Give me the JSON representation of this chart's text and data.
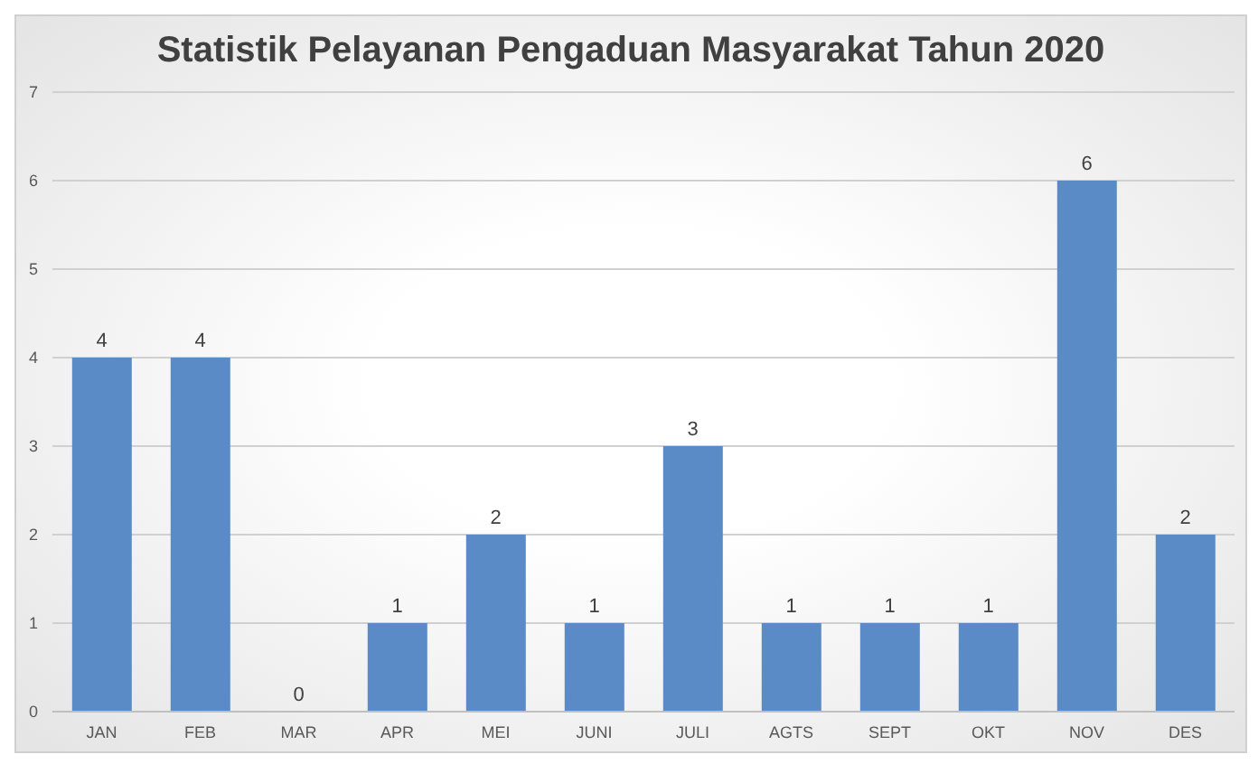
{
  "chart_data": {
    "type": "bar",
    "title": "Statistik Pelayanan Pengaduan Masyarakat Tahun 2020",
    "categories": [
      "JAN",
      "FEB",
      "MAR",
      "APR",
      "MEI",
      "JUNI",
      "JULI",
      "AGTS",
      "SEPT",
      "OKT",
      "NOV",
      "DES"
    ],
    "values": [
      4,
      4,
      0,
      1,
      2,
      1,
      3,
      1,
      1,
      1,
      6,
      2
    ],
    "color": "#5b8bc7",
    "ylim": [
      0,
      7
    ],
    "yticks": [
      0,
      1,
      2,
      3,
      4,
      5,
      6,
      7
    ],
    "grid": "y",
    "data_labels": true,
    "legend": false
  }
}
